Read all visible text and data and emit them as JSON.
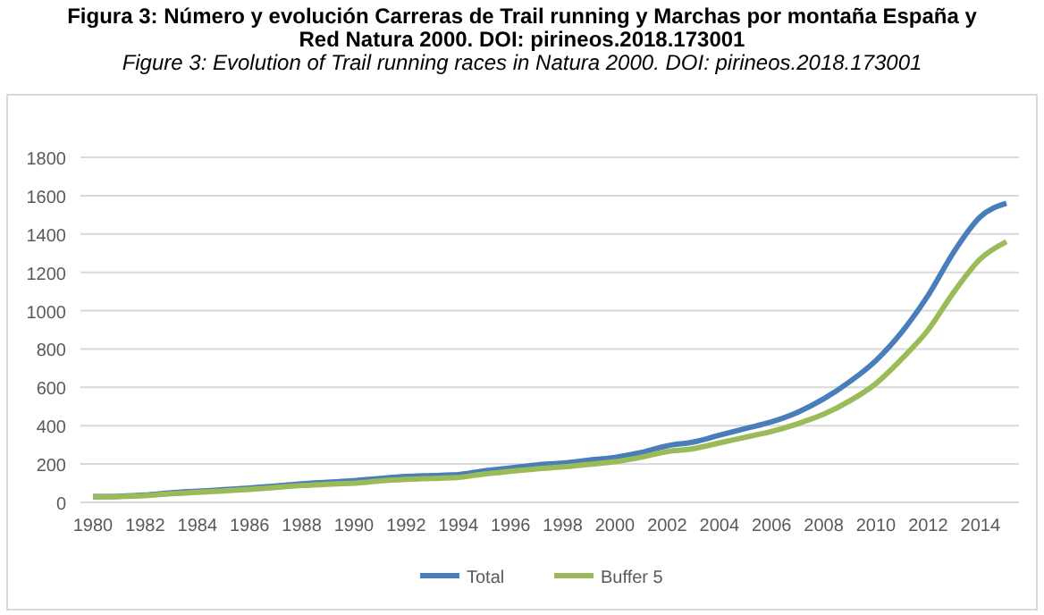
{
  "chart_data": {
    "type": "line",
    "title": "Figura 3: Número y evolución Carreras de Trail running y Marchas por montaña España y Red Natura 2000. DOI: pirineos.2018.173001",
    "subtitle": "Figure 3: Evolution of Trail running races in Natura 2000. DOI: pirineos.2018.173001",
    "categories": [
      "1980",
      null,
      "1982",
      null,
      "1984",
      null,
      "1986",
      null,
      "1988",
      null,
      "1990",
      null,
      "1992",
      null,
      "1994",
      null,
      "1996",
      null,
      "1998",
      null,
      "2000",
      null,
      "2002",
      null,
      "2004",
      null,
      "2006",
      null,
      "2008",
      null,
      "2010",
      null,
      "2012",
      null,
      "2014",
      null
    ],
    "series": [
      {
        "name": "Total",
        "color": "#4a7ebb",
        "values": [
          30,
          32,
          38,
          50,
          58,
          66,
          75,
          85,
          97,
          105,
          113,
          125,
          135,
          140,
          145,
          165,
          180,
          195,
          205,
          220,
          235,
          260,
          295,
          315,
          350,
          385,
          420,
          470,
          540,
          630,
          740,
          890,
          1080,
          1310,
          1490,
          1560
        ]
      },
      {
        "name": "Buffer 5",
        "color": "#9bbb59",
        "values": [
          28,
          30,
          35,
          45,
          52,
          60,
          68,
          78,
          88,
          95,
          100,
          112,
          120,
          125,
          130,
          148,
          162,
          175,
          185,
          198,
          212,
          235,
          265,
          280,
          310,
          340,
          370,
          410,
          460,
          530,
          620,
          750,
          900,
          1100,
          1270,
          1360
        ]
      }
    ],
    "ylim": [
      0,
      1800
    ],
    "yticks": [
      0,
      200,
      400,
      600,
      800,
      1000,
      1200,
      1400,
      1600,
      1800
    ],
    "grid": "y",
    "legend": "bottom",
    "line_style": "solid",
    "marker": "none"
  }
}
